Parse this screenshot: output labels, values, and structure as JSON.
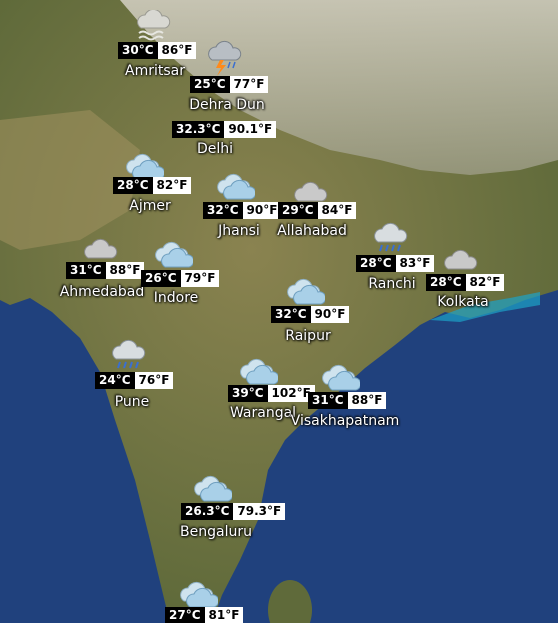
{
  "map": {
    "title": "",
    "colors": {
      "ocean": "#1f3f7a",
      "land": "#7f7a48",
      "mountains": "#bdb8a8"
    }
  },
  "cities": [
    {
      "name": "Amritsar",
      "temp_c": "30°C",
      "temp_f": "86°F",
      "icon": "fog-icon"
    },
    {
      "name": "Dehra Dun",
      "temp_c": "25°C",
      "temp_f": "77°F",
      "icon": "thunderstorm-icon"
    },
    {
      "name": "Delhi",
      "temp_c": "32.3°C",
      "temp_f": "90.1°F",
      "icon": ""
    },
    {
      "name": "Ajmer",
      "temp_c": "28°C",
      "temp_f": "82°F",
      "icon": "partly-cloudy-icon"
    },
    {
      "name": "Jhansi",
      "temp_c": "32°C",
      "temp_f": "90°F",
      "icon": "partly-cloudy-icon"
    },
    {
      "name": "Allahabad",
      "temp_c": "29°C",
      "temp_f": "84°F",
      "icon": "cloudy-icon"
    },
    {
      "name": "Ranchi",
      "temp_c": "28°C",
      "temp_f": "83°F",
      "icon": "rain-icon"
    },
    {
      "name": "Kolkata",
      "temp_c": "28°C",
      "temp_f": "82°F",
      "icon": "cloudy-icon"
    },
    {
      "name": "Ahmedabad",
      "temp_c": "31°C",
      "temp_f": "88°F",
      "icon": "cloudy-icon"
    },
    {
      "name": "Indore",
      "temp_c": "26°C",
      "temp_f": "79°F",
      "icon": "partly-cloudy-icon"
    },
    {
      "name": "Raipur",
      "temp_c": "32°C",
      "temp_f": "90°F",
      "icon": "partly-cloudy-icon"
    },
    {
      "name": "Pune",
      "temp_c": "24°C",
      "temp_f": "76°F",
      "icon": "rain-icon"
    },
    {
      "name": "Warangal",
      "temp_c": "39°C",
      "temp_f": "102°F",
      "icon": "partly-cloudy-icon"
    },
    {
      "name": "Visakhapatnam",
      "temp_c": "31°C",
      "temp_f": "88°F",
      "icon": "partly-cloudy-icon"
    },
    {
      "name": "Bengaluru",
      "temp_c": "26.3°C",
      "temp_f": "79.3°F",
      "icon": "partly-cloudy-icon"
    },
    {
      "name": "",
      "temp_c": "27°C",
      "temp_f": "81°F",
      "icon": "partly-cloudy-icon"
    }
  ]
}
